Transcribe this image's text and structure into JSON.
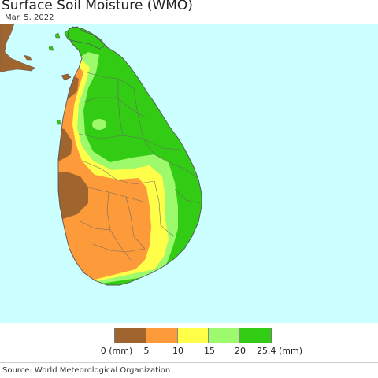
{
  "header": {
    "title": "Surface Soil Moisture (WMO)",
    "date": "Mar. 5, 2022"
  },
  "colors": {
    "sea": "#ccffff",
    "boundary": "#666666",
    "mainland": "#a0652e"
  },
  "legend": {
    "colors": [
      "#a0652e",
      "#fd9b3a",
      "#ffff4a",
      "#9cfa6c",
      "#33cc14"
    ],
    "tick_labels": [
      "0 (mm)",
      "5",
      "10",
      "15",
      "20",
      "25.4 (mm)"
    ]
  },
  "footer": {
    "source": "Source: World Meteorological Organization"
  }
}
